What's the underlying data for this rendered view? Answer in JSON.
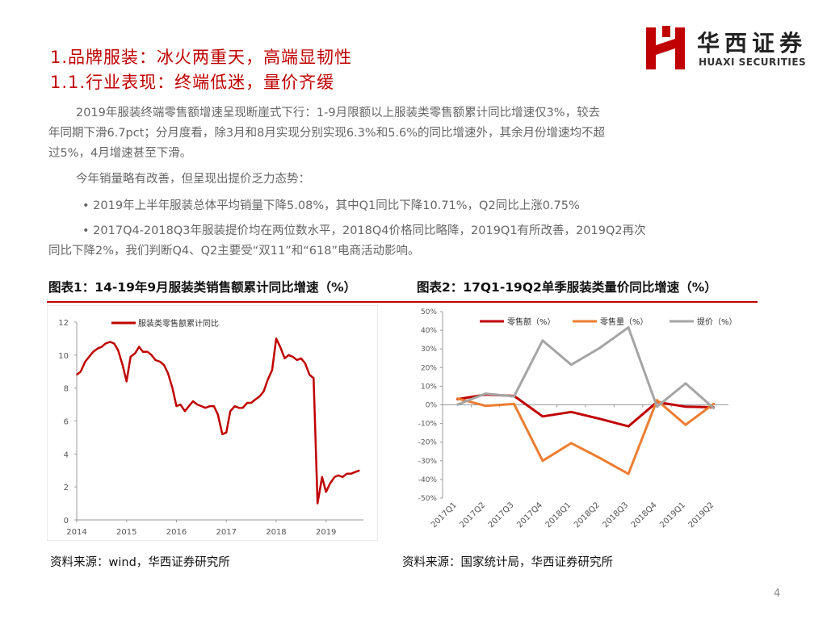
{
  "header": {
    "title1": "1.品牌服装：冰火两重天，高端显韧性",
    "title2": "1.1.行业表现：终端低迷，量价齐缓",
    "logo_cn": "华西证券",
    "logo_en": "HUAXI SECURITIES"
  },
  "body": {
    "p1_l1": "2019年服装终端零售额增速呈现断崖式下行：1-9月限额以上服装类零售额累计同比增速仅3%，较去",
    "p1_l2": "年同期下滑6.7pct；分月度看，除3月和8月实现分别实现6.3%和5.6%的同比增速外，其余月份增速均不超",
    "p1_l3": "过5%，4月增速甚至下滑。",
    "p2": "今年销量略有改善，但呈现出提价乏力态势：",
    "b1": "• 2019年上半年服装总体平均销量下降5.08%，其中Q1同比下降10.71%，Q2同比上涨0.75%",
    "b2_l1": "• 2017Q4-2018Q3年服装提价均在两位数水平，2018Q4价格同比略降，2019Q1有所改善，2019Q2再次",
    "b2_l2": "同比下降2%，我们判断Q4、Q2主要受“双11”和“618”电商活动影响。"
  },
  "captions": {
    "fig1": "图表1：14-19年9月服装类销售额累计同比增速（%）",
    "fig2": "图表2：17Q1-19Q2单季服装类量价同比增速（%）"
  },
  "sources": {
    "s1": "资料来源：wind，华西证券研究所",
    "s2": "资料来源：国家统计局，华西证券研究所"
  },
  "page_number": "4",
  "colors": {
    "red": "#c00000",
    "orange": "#ed7d31",
    "gray": "#a5a5a5"
  },
  "chart_data": [
    {
      "type": "line",
      "title": "",
      "legend": [
        "服装类零售额累计同比"
      ],
      "legend_position": "top-left",
      "xlabel": "",
      "ylabel": "",
      "x_ticks": [
        "2014",
        "2015",
        "2016",
        "2017",
        "2018",
        "2019"
      ],
      "y_ticks": [
        0,
        2,
        4,
        6,
        8,
        10,
        12
      ],
      "xlim": [
        2014.0,
        2019.75
      ],
      "ylim": [
        0,
        12
      ],
      "grid": false,
      "series": [
        {
          "name": "服装类零售额累计同比",
          "color": "#c00000",
          "x": [
            2014.0,
            2014.08,
            2014.17,
            2014.25,
            2014.33,
            2014.42,
            2014.5,
            2014.58,
            2014.67,
            2014.75,
            2014.83,
            2014.92,
            2015.0,
            2015.08,
            2015.17,
            2015.25,
            2015.33,
            2015.42,
            2015.5,
            2015.58,
            2015.67,
            2015.75,
            2015.83,
            2015.92,
            2016.0,
            2016.08,
            2016.17,
            2016.25,
            2016.33,
            2016.42,
            2016.5,
            2016.58,
            2016.67,
            2016.75,
            2016.83,
            2016.92,
            2017.0,
            2017.08,
            2017.17,
            2017.25,
            2017.33,
            2017.42,
            2017.5,
            2017.58,
            2017.67,
            2017.75,
            2017.83,
            2017.92,
            2018.0,
            2018.08,
            2018.17,
            2018.25,
            2018.33,
            2018.42,
            2018.5,
            2018.58,
            2018.67,
            2018.75,
            2018.83,
            2018.92,
            2019.0,
            2019.08,
            2019.17,
            2019.25,
            2019.33,
            2019.42,
            2019.5,
            2019.58,
            2019.67
          ],
          "values": [
            8.8,
            9.0,
            9.6,
            9.9,
            10.2,
            10.4,
            10.5,
            10.7,
            10.8,
            10.7,
            10.3,
            9.4,
            8.4,
            9.9,
            10.1,
            10.5,
            10.2,
            10.2,
            10.0,
            9.7,
            9.6,
            9.4,
            8.9,
            8.0,
            6.9,
            7.0,
            6.6,
            6.9,
            7.2,
            7.0,
            6.9,
            6.8,
            6.9,
            6.9,
            6.4,
            5.2,
            5.3,
            6.6,
            6.9,
            6.8,
            6.8,
            7.1,
            7.1,
            7.3,
            7.5,
            7.8,
            8.5,
            9.1,
            11.0,
            10.5,
            9.8,
            10.0,
            9.9,
            9.7,
            9.8,
            9.5,
            8.8,
            8.6,
            1.0,
            2.6,
            1.7,
            2.2,
            2.6,
            2.7,
            2.6,
            2.8,
            2.8,
            2.9,
            3.0
          ]
        }
      ]
    },
    {
      "type": "line",
      "title": "",
      "legend_position": "top",
      "categories": [
        "2017Q1",
        "2017Q2",
        "2017Q3",
        "2017Q4",
        "2018Q1",
        "2018Q2",
        "2018Q3",
        "2018Q4",
        "2019Q1",
        "2019Q2"
      ],
      "y_ticks": [
        -50,
        -40,
        -30,
        -20,
        -10,
        0,
        10,
        20,
        30,
        40,
        50
      ],
      "y_tick_labels": [
        "-50%",
        "-40%",
        "-30%",
        "-20%",
        "-10%",
        "0%",
        "10%",
        "20%",
        "30%",
        "40%",
        "50%"
      ],
      "ylim": [
        -50,
        50
      ],
      "grid": false,
      "series": [
        {
          "name": "零售额（%）",
          "color": "#c00000",
          "values": [
            3,
            5.5,
            4.8,
            -6.2,
            -3.8,
            -7.5,
            -11.5,
            1.5,
            -1.0,
            -1.3
          ]
        },
        {
          "name": "零售量（%）",
          "color": "#ed7d31",
          "values": [
            3.5,
            -0.5,
            0.5,
            -30.0,
            -20.5,
            -28.5,
            -37.0,
            2.5,
            -10.7,
            0.75
          ]
        },
        {
          "name": "提价（%）",
          "color": "#a5a5a5",
          "values": [
            0,
            6.0,
            4.5,
            34.5,
            21.5,
            30.5,
            41.5,
            -1.0,
            11.5,
            -2.0
          ]
        }
      ]
    }
  ]
}
